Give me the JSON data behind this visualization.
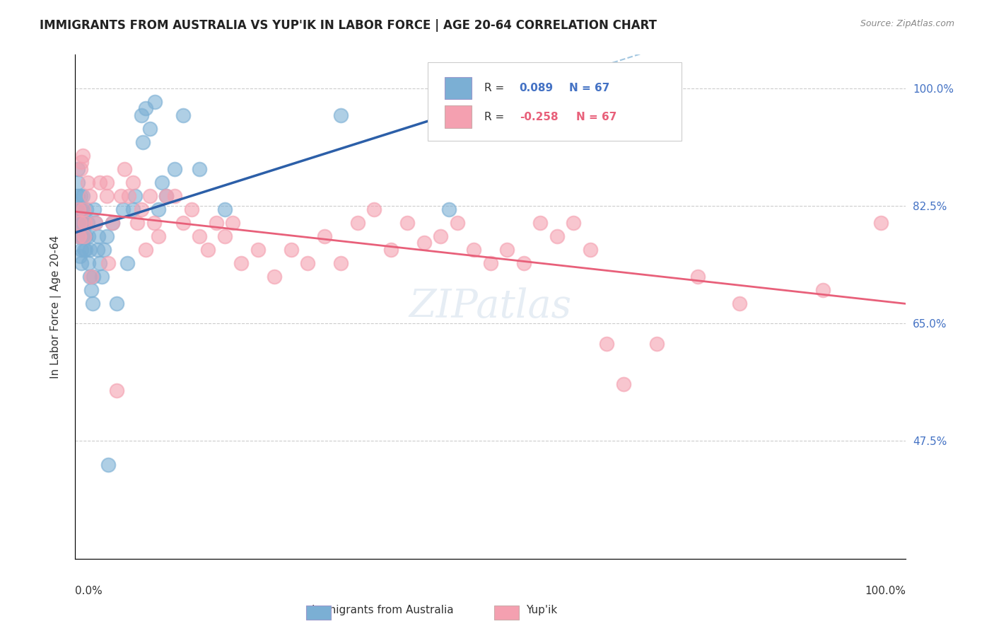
{
  "title": "IMMIGRANTS FROM AUSTRALIA VS YUP'IK IN LABOR FORCE | AGE 20-64 CORRELATION CHART",
  "source": "Source: ZipAtlas.com",
  "ylabel": "In Labor Force | Age 20-64",
  "x_min": 0.0,
  "x_max": 1.0,
  "y_min": 0.3,
  "y_max": 1.05,
  "R_blue": 0.089,
  "N_blue": 67,
  "R_pink": -0.258,
  "N_pink": 67,
  "blue_color": "#7bafd4",
  "pink_color": "#f4a0b0",
  "blue_line_color": "#2c5fa8",
  "pink_line_color": "#e8607a",
  "blue_dashed_color": "#7bafd4",
  "legend_label_blue": "Immigrants from Australia",
  "legend_label_pink": "Yup'ik",
  "blue_x": [
    0.003,
    0.003,
    0.003,
    0.003,
    0.003,
    0.004,
    0.004,
    0.004,
    0.005,
    0.005,
    0.005,
    0.006,
    0.006,
    0.007,
    0.007,
    0.007,
    0.008,
    0.008,
    0.008,
    0.009,
    0.009,
    0.009,
    0.01,
    0.01,
    0.011,
    0.011,
    0.012,
    0.013,
    0.013,
    0.014,
    0.015,
    0.016,
    0.016,
    0.018,
    0.018,
    0.02,
    0.021,
    0.022,
    0.023,
    0.025,
    0.027,
    0.028,
    0.03,
    0.032,
    0.035,
    0.038,
    0.04,
    0.045,
    0.05,
    0.058,
    0.063,
    0.07,
    0.072,
    0.08,
    0.082,
    0.085,
    0.09,
    0.096,
    0.1,
    0.105,
    0.11,
    0.12,
    0.13,
    0.15,
    0.18,
    0.32,
    0.45
  ],
  "blue_y": [
    0.82,
    0.8,
    0.84,
    0.86,
    0.88,
    0.78,
    0.8,
    0.82,
    0.78,
    0.8,
    0.82,
    0.75,
    0.78,
    0.8,
    0.82,
    0.84,
    0.74,
    0.76,
    0.78,
    0.8,
    0.82,
    0.84,
    0.78,
    0.8,
    0.76,
    0.78,
    0.8,
    0.78,
    0.76,
    0.82,
    0.8,
    0.78,
    0.74,
    0.72,
    0.76,
    0.7,
    0.68,
    0.72,
    0.82,
    0.8,
    0.76,
    0.78,
    0.74,
    0.72,
    0.76,
    0.78,
    0.44,
    0.8,
    0.68,
    0.82,
    0.74,
    0.82,
    0.84,
    0.96,
    0.92,
    0.97,
    0.94,
    0.98,
    0.82,
    0.86,
    0.84,
    0.88,
    0.96,
    0.88,
    0.82,
    0.96,
    0.82
  ],
  "pink_x": [
    0.004,
    0.005,
    0.006,
    0.007,
    0.008,
    0.009,
    0.01,
    0.011,
    0.012,
    0.015,
    0.018,
    0.02,
    0.025,
    0.03,
    0.038,
    0.038,
    0.04,
    0.045,
    0.05,
    0.055,
    0.06,
    0.065,
    0.07,
    0.075,
    0.08,
    0.085,
    0.09,
    0.095,
    0.1,
    0.11,
    0.12,
    0.13,
    0.14,
    0.15,
    0.16,
    0.17,
    0.18,
    0.19,
    0.2,
    0.22,
    0.24,
    0.26,
    0.28,
    0.3,
    0.32,
    0.34,
    0.36,
    0.38,
    0.4,
    0.42,
    0.44,
    0.46,
    0.48,
    0.5,
    0.52,
    0.54,
    0.56,
    0.58,
    0.6,
    0.62,
    0.64,
    0.66,
    0.7,
    0.75,
    0.8,
    0.9,
    0.97
  ],
  "pink_y": [
    0.82,
    0.78,
    0.8,
    0.88,
    0.89,
    0.9,
    0.82,
    0.78,
    0.8,
    0.86,
    0.84,
    0.72,
    0.8,
    0.86,
    0.84,
    0.86,
    0.74,
    0.8,
    0.55,
    0.84,
    0.88,
    0.84,
    0.86,
    0.8,
    0.82,
    0.76,
    0.84,
    0.8,
    0.78,
    0.84,
    0.84,
    0.8,
    0.82,
    0.78,
    0.76,
    0.8,
    0.78,
    0.8,
    0.74,
    0.76,
    0.72,
    0.76,
    0.74,
    0.78,
    0.74,
    0.8,
    0.82,
    0.76,
    0.8,
    0.77,
    0.78,
    0.8,
    0.76,
    0.74,
    0.76,
    0.74,
    0.8,
    0.78,
    0.8,
    0.76,
    0.62,
    0.56,
    0.62,
    0.72,
    0.68,
    0.7,
    0.8
  ]
}
